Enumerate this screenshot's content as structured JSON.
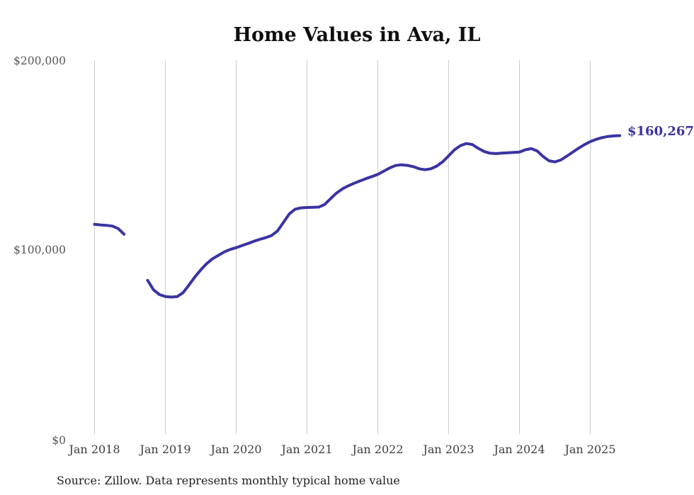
{
  "title": "Home Values in Ava, IL",
  "source_note": "Source: Zillow. Data represents monthly typical home value",
  "colors": {
    "line": "#3a33a2",
    "end_label": "#3a33a2",
    "grid": "#cccccc",
    "y_axis_text": "#565656",
    "x_axis_text": "#3d3d3d",
    "title_text": "#0f0f0f",
    "source_text": "#1f1f1f",
    "background": "#ffffff"
  },
  "chart_data": {
    "type": "line",
    "title": "Home Values in Ava, IL",
    "xlabel": "",
    "ylabel": "",
    "ylim": [
      0,
      200000
    ],
    "grid": "vertical-only",
    "legend": "none",
    "y_tick_labels": [
      "$0",
      "$100,000",
      "$200,000"
    ],
    "y_tick_values": [
      0,
      100000,
      200000
    ],
    "x_tick_labels": [
      "Jan 2018",
      "Jan 2019",
      "Jan 2020",
      "Jan 2021",
      "Jan 2022",
      "Jan 2023",
      "Jan 2024",
      "Jan 2025"
    ],
    "end_label": {
      "text": "$160,267",
      "value": 160267,
      "month": "2025-06"
    },
    "gap_months": [
      "2018-07",
      "2018-08",
      "2018-09"
    ],
    "series": [
      {
        "name": "Monthly typical home value",
        "start": "2018-01",
        "frequency": "monthly",
        "values": [
          113500,
          113200,
          113000,
          112600,
          111300,
          108300,
          null,
          null,
          null,
          84000,
          79000,
          76500,
          75500,
          75200,
          75400,
          77500,
          81500,
          85800,
          89500,
          92800,
          95400,
          97200,
          99000,
          100300,
          101200,
          102300,
          103400,
          104600,
          105600,
          106500,
          107600,
          110000,
          114500,
          119000,
          121500,
          122200,
          122400,
          122500,
          122600,
          124000,
          127000,
          130000,
          132200,
          133800,
          135200,
          136400,
          137600,
          138700,
          139800,
          141500,
          143200,
          144500,
          144900,
          144600,
          143900,
          142800,
          142300,
          142800,
          144200,
          146500,
          149600,
          152800,
          155000,
          156100,
          155600,
          153600,
          151900,
          151000,
          150800,
          151000,
          151200,
          151400,
          151600,
          152800,
          153400,
          152200,
          149300,
          147000,
          146400,
          147400,
          149400,
          151500,
          153600,
          155500,
          157100,
          158300,
          159200,
          159800,
          160100,
          160267
        ]
      }
    ]
  }
}
